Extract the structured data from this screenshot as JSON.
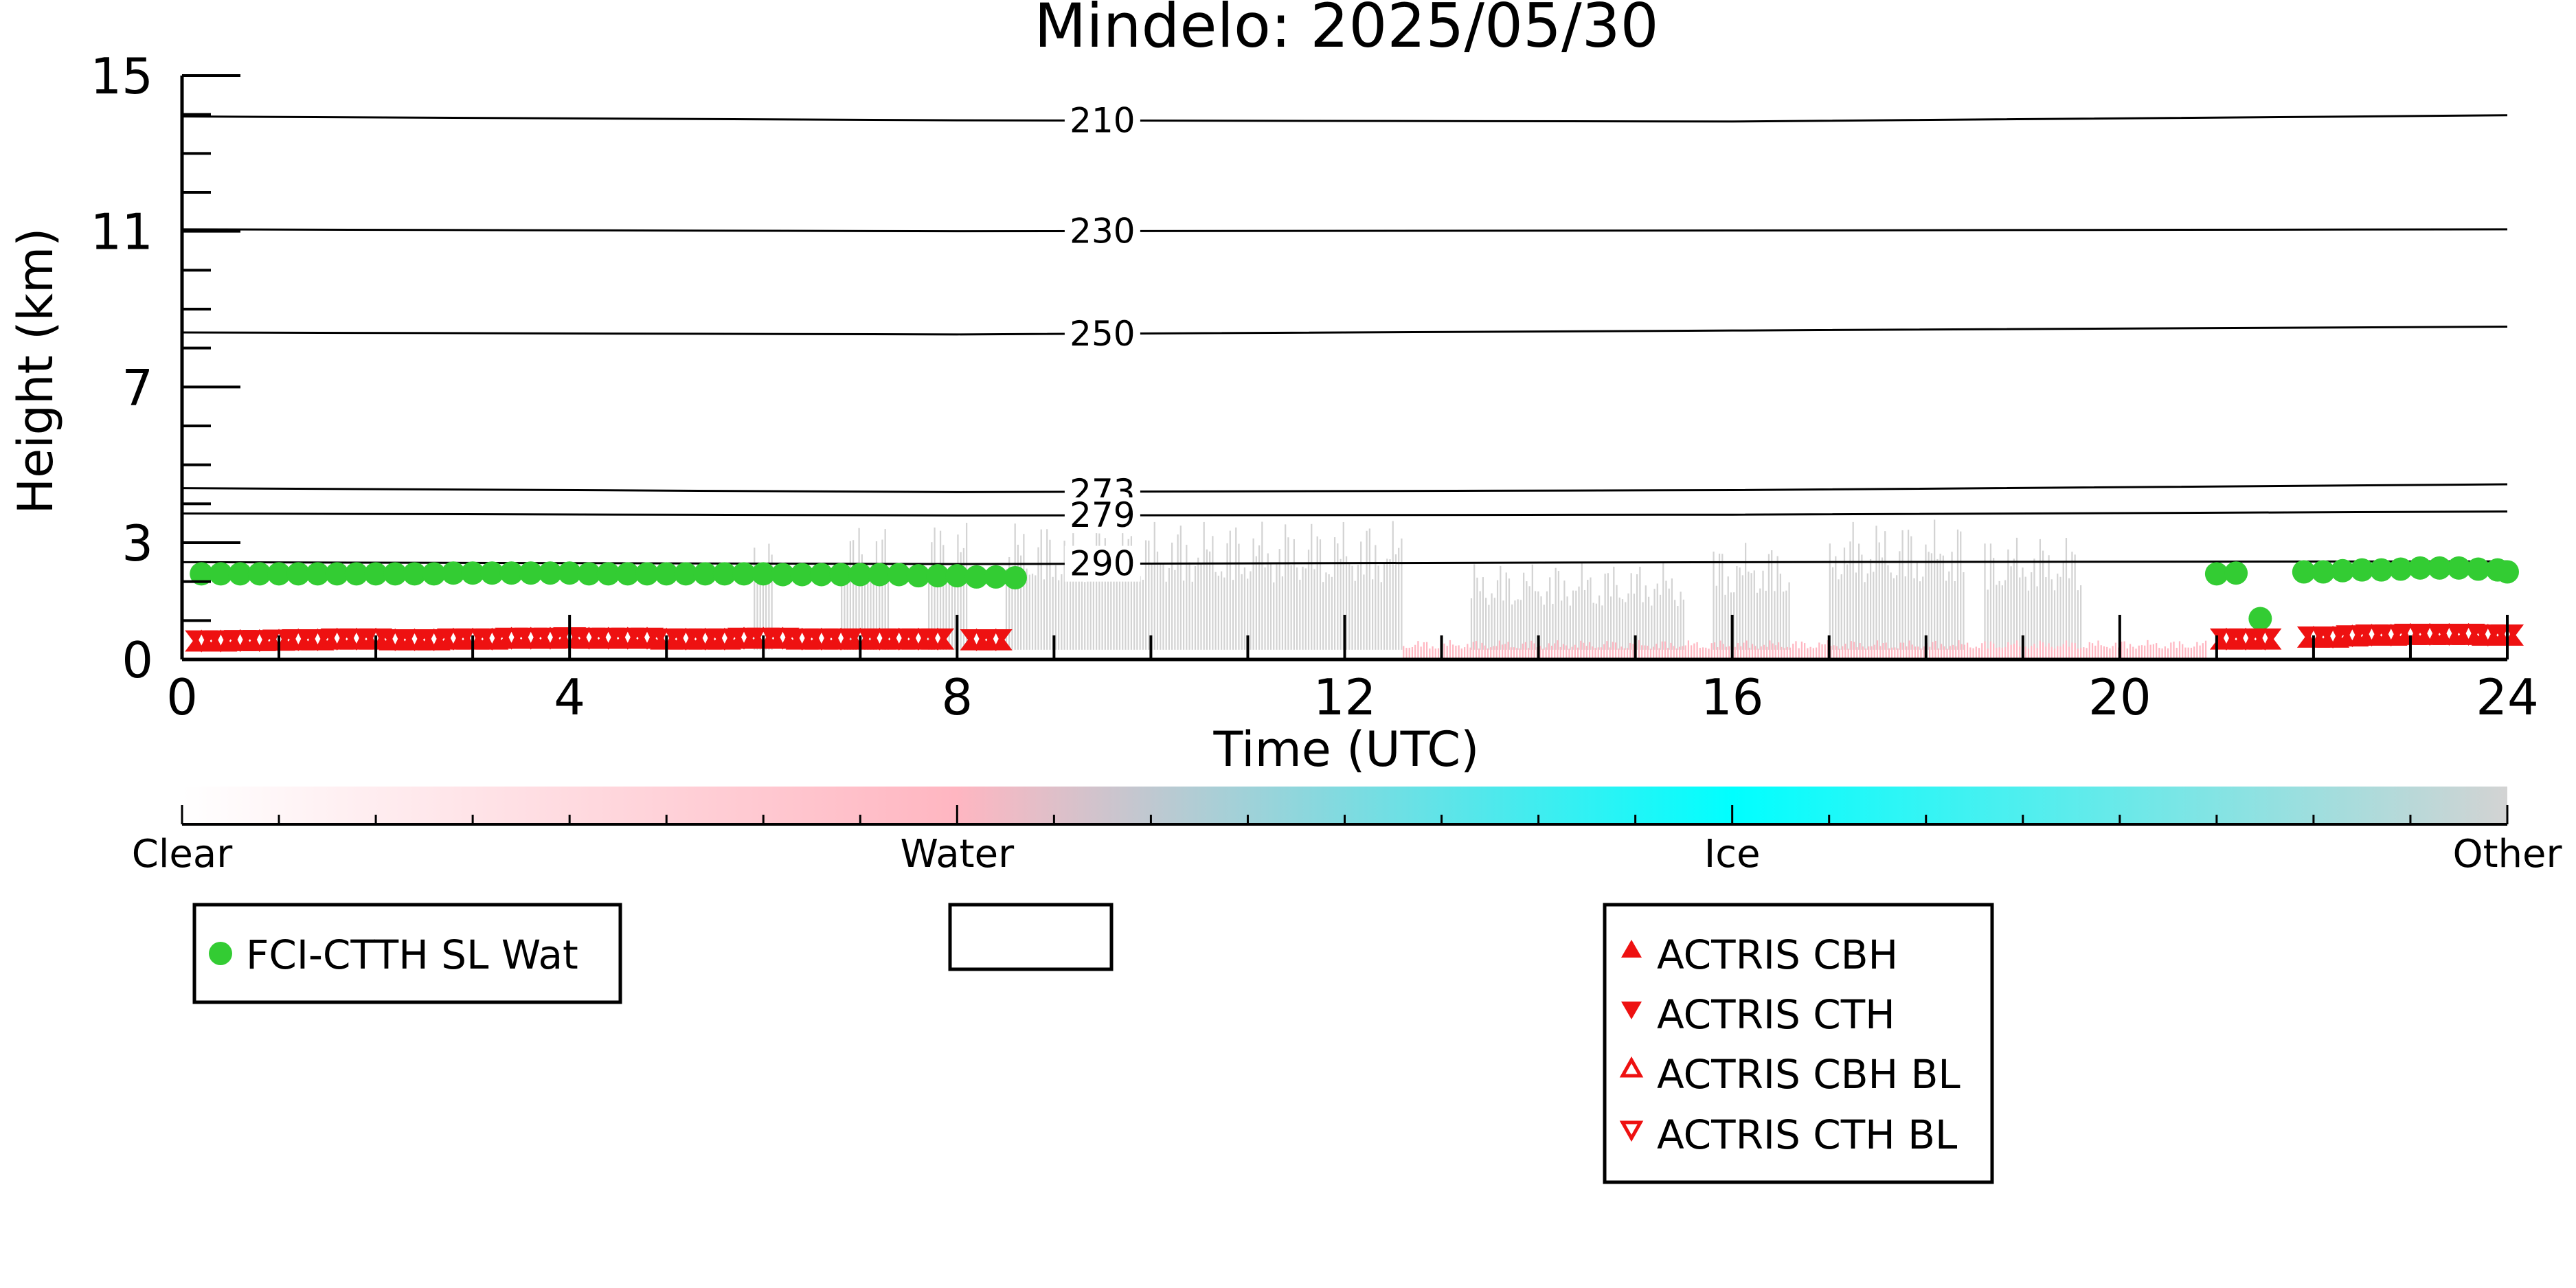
{
  "chart_data": {
    "type": "scatter",
    "title": "Mindelo: 2025/05/30",
    "xlabel": "Time (UTC)",
    "ylabel": "Height (km)",
    "xlim": [
      0,
      24
    ],
    "ylim": [
      0,
      15
    ],
    "x_ticks": [
      0,
      4,
      8,
      12,
      16,
      20,
      24
    ],
    "x_tick_labels": [
      "0",
      "4",
      "8",
      "12",
      "16",
      "20",
      "24"
    ],
    "y_ticks": [
      0,
      3,
      7,
      11,
      15
    ],
    "y_tick_labels": [
      "0",
      "3",
      "7",
      "11",
      "15"
    ],
    "grid": false,
    "isotherms": [
      {
        "label": "210",
        "heights": [
          13.95,
          13.85,
          13.82,
          13.98
        ]
      },
      {
        "label": "230",
        "heights": [
          11.05,
          11.0,
          11.02,
          11.05
        ]
      },
      {
        "label": "250",
        "heights": [
          8.4,
          8.35,
          8.45,
          8.55
        ]
      },
      {
        "label": "273",
        "heights": [
          4.4,
          4.3,
          4.35,
          4.5
        ]
      },
      {
        "label": "279",
        "heights": [
          3.75,
          3.7,
          3.72,
          3.8
        ]
      },
      {
        "label": "290",
        "heights": [
          2.5,
          2.45,
          2.5,
          2.52
        ]
      }
    ],
    "series": [
      {
        "name": "FCI-CTTH SL Wat",
        "color": "#33cc33",
        "marker": "circle",
        "points": [
          [
            0.2,
            2.2
          ],
          [
            0.4,
            2.2
          ],
          [
            0.6,
            2.2
          ],
          [
            0.8,
            2.2
          ],
          [
            1.0,
            2.2
          ],
          [
            1.2,
            2.2
          ],
          [
            1.4,
            2.2
          ],
          [
            1.6,
            2.2
          ],
          [
            1.8,
            2.2
          ],
          [
            2.0,
            2.2
          ],
          [
            2.2,
            2.2
          ],
          [
            2.4,
            2.2
          ],
          [
            2.6,
            2.2
          ],
          [
            2.8,
            2.22
          ],
          [
            3.0,
            2.22
          ],
          [
            3.2,
            2.22
          ],
          [
            3.4,
            2.22
          ],
          [
            3.6,
            2.22
          ],
          [
            3.8,
            2.22
          ],
          [
            4.0,
            2.22
          ],
          [
            4.2,
            2.2
          ],
          [
            4.4,
            2.2
          ],
          [
            4.6,
            2.2
          ],
          [
            4.8,
            2.2
          ],
          [
            5.0,
            2.2
          ],
          [
            5.2,
            2.2
          ],
          [
            5.4,
            2.2
          ],
          [
            5.6,
            2.2
          ],
          [
            5.8,
            2.2
          ],
          [
            6.0,
            2.2
          ],
          [
            6.2,
            2.18
          ],
          [
            6.4,
            2.18
          ],
          [
            6.6,
            2.18
          ],
          [
            6.8,
            2.18
          ],
          [
            7.0,
            2.18
          ],
          [
            7.2,
            2.18
          ],
          [
            7.4,
            2.18
          ],
          [
            7.6,
            2.15
          ],
          [
            7.8,
            2.15
          ],
          [
            8.0,
            2.15
          ],
          [
            8.2,
            2.12
          ],
          [
            8.4,
            2.12
          ],
          [
            8.6,
            2.1
          ],
          [
            21.0,
            2.2
          ],
          [
            21.2,
            2.22
          ],
          [
            21.45,
            1.05
          ],
          [
            21.9,
            2.25
          ],
          [
            22.1,
            2.25
          ],
          [
            22.3,
            2.28
          ],
          [
            22.5,
            2.3
          ],
          [
            22.7,
            2.3
          ],
          [
            22.9,
            2.32
          ],
          [
            23.1,
            2.35
          ],
          [
            23.3,
            2.35
          ],
          [
            23.5,
            2.35
          ],
          [
            23.7,
            2.32
          ],
          [
            23.9,
            2.3
          ],
          [
            24.0,
            2.25
          ]
        ]
      },
      {
        "name": "ACTRIS CBH",
        "color": "#ee1111",
        "marker": "triangle-up",
        "x": [
          0.2,
          0.4,
          0.6,
          0.8,
          1.0,
          1.2,
          1.4,
          1.6,
          1.8,
          2.0,
          2.2,
          2.4,
          2.6,
          2.8,
          3.0,
          3.2,
          3.4,
          3.6,
          3.8,
          4.0,
          4.2,
          4.4,
          4.6,
          4.8,
          5.0,
          5.2,
          5.4,
          5.6,
          5.8,
          6.0,
          6.2,
          6.4,
          6.6,
          6.8,
          7.0,
          7.2,
          7.4,
          7.6,
          7.8,
          8.2,
          8.4,
          21.1,
          21.3,
          21.5,
          22.0,
          22.2,
          22.4,
          22.6,
          22.8,
          23.0,
          23.2,
          23.4,
          23.6,
          23.8,
          24.0
        ],
        "y": [
          0.45,
          0.45,
          0.46,
          0.46,
          0.47,
          0.48,
          0.48,
          0.5,
          0.5,
          0.5,
          0.48,
          0.48,
          0.48,
          0.5,
          0.5,
          0.5,
          0.52,
          0.52,
          0.52,
          0.53,
          0.52,
          0.52,
          0.52,
          0.52,
          0.5,
          0.5,
          0.5,
          0.5,
          0.52,
          0.52,
          0.52,
          0.5,
          0.5,
          0.5,
          0.5,
          0.5,
          0.5,
          0.5,
          0.5,
          0.48,
          0.48,
          0.5,
          0.5,
          0.5,
          0.55,
          0.55,
          0.58,
          0.6,
          0.6,
          0.62,
          0.62,
          0.62,
          0.62,
          0.6,
          0.6
        ]
      },
      {
        "name": "ACTRIS CTH",
        "color": "#ee1111",
        "marker": "triangle-down",
        "x": [
          0.2,
          0.4,
          0.6,
          0.8,
          1.0,
          1.2,
          1.4,
          1.6,
          1.8,
          2.0,
          2.2,
          2.4,
          2.6,
          2.8,
          3.0,
          3.2,
          3.4,
          3.6,
          3.8,
          4.0,
          4.2,
          4.4,
          4.6,
          4.8,
          5.0,
          5.2,
          5.4,
          5.6,
          5.8,
          6.0,
          6.2,
          6.4,
          6.6,
          6.8,
          7.0,
          7.2,
          7.4,
          7.6,
          7.8,
          8.2,
          8.4,
          21.1,
          21.3,
          21.5,
          22.0,
          22.2,
          22.4,
          22.6,
          22.8,
          23.0,
          23.2,
          23.4,
          23.6,
          23.8,
          24.0
        ],
        "y": [
          0.5,
          0.5,
          0.51,
          0.51,
          0.52,
          0.53,
          0.53,
          0.55,
          0.55,
          0.55,
          0.53,
          0.53,
          0.53,
          0.55,
          0.55,
          0.55,
          0.57,
          0.57,
          0.57,
          0.58,
          0.57,
          0.57,
          0.57,
          0.57,
          0.55,
          0.55,
          0.55,
          0.55,
          0.57,
          0.57,
          0.57,
          0.55,
          0.55,
          0.55,
          0.55,
          0.55,
          0.55,
          0.55,
          0.55,
          0.53,
          0.53,
          0.55,
          0.55,
          0.55,
          0.6,
          0.6,
          0.63,
          0.65,
          0.65,
          0.67,
          0.67,
          0.67,
          0.67,
          0.65,
          0.65
        ]
      },
      {
        "name": "ACTRIS CBH BL",
        "color": "#ee1111",
        "marker": "triangle-up-open",
        "x": [],
        "y": []
      },
      {
        "name": "ACTRIS CTH BL",
        "color": "#ee1111",
        "marker": "triangle-down-open",
        "x": [],
        "y": []
      }
    ],
    "background_classes": [
      {
        "class": "Other",
        "color": "#d3d3d3",
        "spans": [
          [
            5.9,
            6.1,
            3.4
          ],
          [
            6.8,
            7.3,
            3.5
          ],
          [
            7.7,
            8.1,
            3.6
          ],
          [
            8.5,
            12.6,
            3.6
          ],
          [
            13.3,
            14.5,
            2.5
          ],
          [
            14.5,
            15.5,
            2.5
          ],
          [
            15.8,
            16.6,
            3.0
          ],
          [
            17.0,
            18.4,
            3.6
          ],
          [
            18.6,
            19.6,
            3.2
          ]
        ]
      },
      {
        "class": "Water",
        "color": "#ffb6c1",
        "spans": [
          [
            12.6,
            20.9,
            0.5
          ]
        ]
      }
    ],
    "colorbar": {
      "labels": [
        "Clear",
        "Water",
        "Ice",
        "Other"
      ],
      "colors": [
        "#ffffff",
        "#ffb6c1",
        "#00ffff",
        "#d3d3d3"
      ]
    },
    "legends": [
      {
        "entries": [
          "FCI-CTTH SL Wat"
        ]
      },
      {
        "entries": []
      },
      {
        "entries": [
          "ACTRIS CBH",
          "ACTRIS CTH",
          "ACTRIS CBH BL",
          "ACTRIS CTH BL"
        ]
      }
    ]
  }
}
